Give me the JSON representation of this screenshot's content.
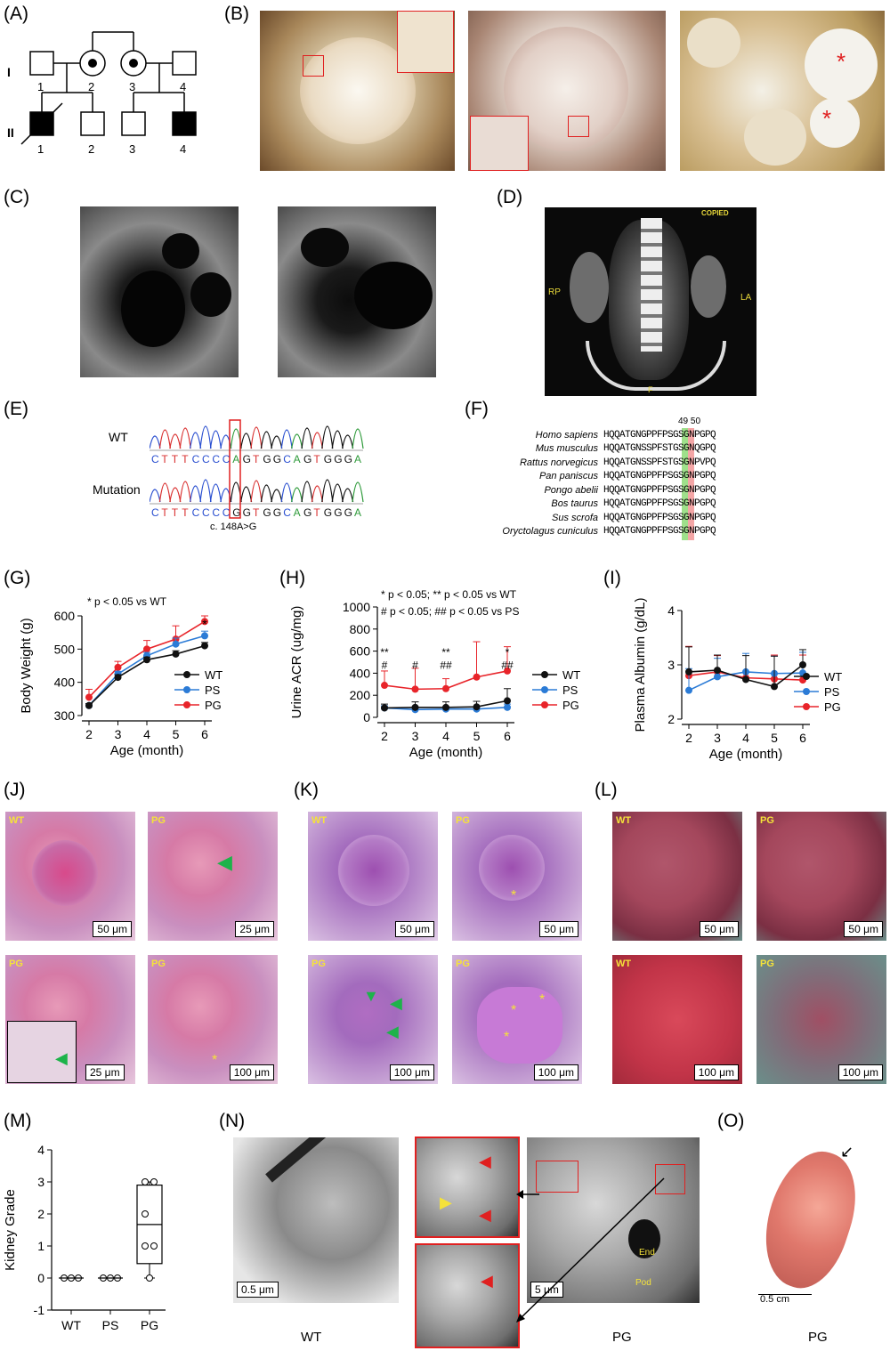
{
  "panels": {
    "A": "(A)",
    "B": "(B)",
    "C": "(C)",
    "D": "(D)",
    "E": "(E)",
    "F": "(F)",
    "G": "(G)",
    "H": "(H)",
    "I": "(I)",
    "J": "(J)",
    "K": "(K)",
    "L": "(L)",
    "M": "(M)",
    "N": "(N)",
    "O": "(O)"
  },
  "pedigree": {
    "gen1": "I",
    "gen2": "II",
    "gen1_ids": [
      "1",
      "2",
      "3",
      "4"
    ],
    "gen2_ids": [
      "1",
      "2",
      "3",
      "4"
    ]
  },
  "ct": {
    "rp": "RP",
    "la": "LA",
    "f": "F",
    "copied": "COPIED"
  },
  "sequencing": {
    "wt_label": "WT",
    "mut_label": "Mutation",
    "wt_seq": [
      "C",
      "T",
      "T",
      "T",
      "C",
      "C",
      "C",
      "C",
      "A",
      "G",
      "T",
      "G",
      "G",
      "C",
      "A",
      "G",
      "T",
      "G",
      "G",
      "G",
      "A"
    ],
    "mut_seq": [
      "C",
      "T",
      "T",
      "T",
      "C",
      "C",
      "C",
      "C",
      "G",
      "G",
      "T",
      "G",
      "G",
      "C",
      "A",
      "G",
      "T",
      "G",
      "G",
      "G",
      "A"
    ],
    "variant": "c. 148A>G",
    "base_colors": {
      "A": "#2e9a3a",
      "C": "#2a4fd0",
      "G": "#111111",
      "T": "#d93030"
    }
  },
  "alignment": {
    "positions": "49 50",
    "rows": [
      {
        "species": "Homo sapiens",
        "seq": "HQQATGNGPPFPSGSGNPGPQ"
      },
      {
        "species": "Mus musculus",
        "seq": "HQQATGNSSPFSTGSGNQGPQ"
      },
      {
        "species": "Rattus norvegicus",
        "seq": "HQQATGNSSPFSTGSGNPVPQ"
      },
      {
        "species": "Pan paniscus",
        "seq": "HQQATGNGPPFPSGSGNPGPQ"
      },
      {
        "species": "Pongo abelii",
        "seq": "HQQATGNGPPFPSGSGNPGPQ"
      },
      {
        "species": "Bos taurus",
        "seq": "HQQATGNGPPFPSGSGNPGPQ"
      },
      {
        "species": "Sus scrofa",
        "seq": "HQQATGNGPPFPSGSGNPGPQ"
      },
      {
        "species": "Oryctolagus cuniculus",
        "seq": "HQQATGNGPPFPSGSGNPGPQ"
      }
    ]
  },
  "legend": {
    "wt": "WT",
    "ps": "PS",
    "pg": "PG"
  },
  "colors": {
    "wt": "#111111",
    "ps": "#2b7bd6",
    "pg": "#e8242a"
  },
  "chart_data": [
    {
      "type": "line",
      "panel": "G",
      "annotation": "* p < 0.05 vs WT",
      "xlabel": "Age (month)",
      "ylabel": "Body Weight (g)",
      "x": [
        2,
        3,
        4,
        5,
        6
      ],
      "ylim": [
        300,
        600
      ],
      "yticks": [
        300,
        400,
        500,
        600
      ],
      "series": [
        {
          "name": "WT",
          "values": [
            330,
            415,
            468,
            485,
            510
          ]
        },
        {
          "name": "PS",
          "values": [
            330,
            425,
            480,
            515,
            540
          ]
        },
        {
          "name": "PG",
          "values": [
            355,
            445,
            500,
            530,
            583
          ]
        }
      ],
      "sig_marks": [
        {
          "x": 6,
          "label": "*"
        }
      ]
    },
    {
      "type": "line",
      "panel": "H",
      "annotation_1": "* p < 0.05; ** p < 0.05 vs WT",
      "annotation_2": "# p < 0.05; ## p < 0.05 vs PS",
      "xlabel": "Age (month)",
      "ylabel": "Urine ACR (ug/mg)",
      "x": [
        2,
        3,
        4,
        5,
        6
      ],
      "ylim": [
        0,
        1000
      ],
      "yticks": [
        0,
        200,
        400,
        600,
        800,
        1000
      ],
      "series": [
        {
          "name": "WT",
          "values": [
            85,
            90,
            90,
            95,
            150
          ]
        },
        {
          "name": "PS",
          "values": [
            85,
            70,
            75,
            75,
            90
          ]
        },
        {
          "name": "PG",
          "values": [
            290,
            255,
            260,
            365,
            420
          ]
        }
      ],
      "sig_marks": [
        {
          "x": 2,
          "top": "**",
          "bottom": "#"
        },
        {
          "x": 3,
          "top": "",
          "bottom": "#"
        },
        {
          "x": 4,
          "top": "**",
          "bottom": "##"
        },
        {
          "x": 6,
          "top": "*",
          "bottom": "##"
        }
      ]
    },
    {
      "type": "line",
      "panel": "I",
      "xlabel": "Age (month)",
      "ylabel": "Plasma Albumin (g/dL)",
      "x": [
        2,
        3,
        4,
        5,
        6
      ],
      "ylim": [
        2,
        4
      ],
      "yticks": [
        2,
        3,
        4
      ],
      "series": [
        {
          "name": "WT",
          "values": [
            2.87,
            2.9,
            2.73,
            2.6,
            3.0
          ]
        },
        {
          "name": "PS",
          "values": [
            2.53,
            2.78,
            2.87,
            2.84,
            2.85
          ]
        },
        {
          "name": "PG",
          "values": [
            2.8,
            2.87,
            2.76,
            2.74,
            2.72
          ]
        }
      ]
    },
    {
      "type": "scatter",
      "panel": "M",
      "ylabel": "Kidney Grade",
      "categories": [
        "WT",
        "PS",
        "PG"
      ],
      "ylim": [
        -1,
        4
      ],
      "yticks": [
        -1,
        0,
        1,
        2,
        3,
        4
      ],
      "points": [
        {
          "group": "WT",
          "values": [
            0,
            0,
            0
          ]
        },
        {
          "group": "PS",
          "values": [
            0,
            0,
            0
          ]
        },
        {
          "group": "PG",
          "values": [
            3,
            3,
            2,
            1,
            1,
            0
          ]
        }
      ],
      "pg_mean": 1.67
    }
  ],
  "histology": {
    "J": [
      {
        "group": "WT",
        "scale": "50 μm"
      },
      {
        "group": "PG",
        "scale": "25 μm"
      },
      {
        "group": "PG",
        "scale": "25 μm"
      },
      {
        "group": "PG",
        "scale": "100 μm"
      }
    ],
    "K": [
      {
        "group": "WT",
        "scale": "50 μm"
      },
      {
        "group": "PG",
        "scale": "50 μm"
      },
      {
        "group": "PG",
        "scale": "100 μm"
      },
      {
        "group": "PG",
        "scale": "100 μm"
      }
    ],
    "L": [
      {
        "group": "WT",
        "scale": "50 μm"
      },
      {
        "group": "PG",
        "scale": "50 μm"
      },
      {
        "group": "WT",
        "scale": "100 μm"
      },
      {
        "group": "PG",
        "scale": "100 μm"
      }
    ]
  },
  "em": {
    "wt_scale": "0.5 μm",
    "pg_scale": "5 μm",
    "end": "End",
    "pod": "Pod",
    "wt_caption": "WT",
    "pg_caption": "PG"
  },
  "kidney": {
    "scale": "0.5 cm",
    "caption": "PG"
  }
}
